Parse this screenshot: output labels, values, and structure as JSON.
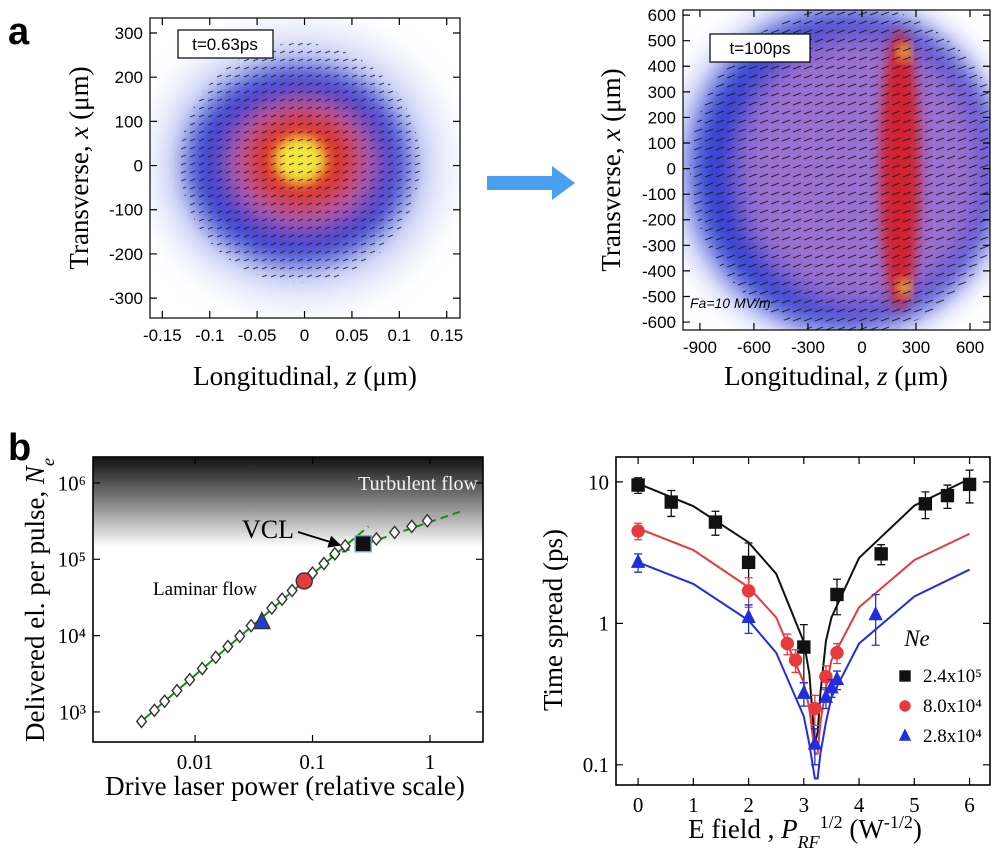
{
  "chart_data": [
    {
      "type": "heatmap",
      "panel_label": "a",
      "annotations": [
        "t=0.63ps"
      ],
      "xlabel": [
        "Longitudinal, ",
        "z",
        " (μm)"
      ],
      "ylabel": [
        "Transverse, ",
        "x",
        " (μm)"
      ],
      "xlim": [
        -0.163,
        0.164
      ],
      "xticks": [
        -0.15,
        -0.1,
        -0.05,
        0,
        0.05,
        0.1,
        0.15
      ],
      "ylim": [
        -345,
        334
      ],
      "yticks": [
        -300,
        -200,
        -100,
        0,
        100,
        200,
        300
      ]
    },
    {
      "type": "heatmap",
      "annotations": [
        "t=100ps",
        "Fa=10 MV/m"
      ],
      "xlabel": [
        "Longitudinal, ",
        "z",
        " (μm)"
      ],
      "ylabel": [
        "Transverse, ",
        "x",
        " (μm)"
      ],
      "xlim": [
        -994,
        711
      ],
      "xticks": [
        -900,
        -600,
        -300,
        0,
        300,
        600
      ],
      "ylim": [
        -631,
        620
      ],
      "yticks": [
        -600,
        -500,
        -400,
        -300,
        -200,
        -100,
        0,
        100,
        200,
        300,
        400,
        500,
        600
      ]
    },
    {
      "type": "scatter",
      "panel_label": "b",
      "xscale": "log",
      "yscale": "log",
      "annotations": [
        "Turbulent flow",
        "Laminar flow",
        "VCL"
      ],
      "xlabel": "Drive laser power (relative scale)",
      "ylabel": [
        "Delivered el. per pulse, ",
        "N",
        "e"
      ],
      "xlim": [
        0.00135,
        2.83
      ],
      "xticks": [
        0.01,
        0.1,
        1
      ],
      "ylim": [
        404,
        2190000
      ],
      "yticks": [
        {
          "value": 1000,
          "label": "10³"
        },
        {
          "value": 10000,
          "label": "10⁴"
        },
        {
          "value": 100000,
          "label": "10⁵"
        },
        {
          "value": 1000000,
          "label": "10⁶"
        }
      ],
      "series": [
        {
          "marker": "diamond",
          "color": "#ffffff",
          "x": [
            0.0035,
            0.0045,
            0.0055,
            0.007,
            0.009,
            0.0115,
            0.015,
            0.019,
            0.024,
            0.03,
            0.045,
            0.055,
            0.067,
            0.1,
            0.125,
            0.155,
            0.19,
            0.35,
            0.5,
            0.7,
            0.95
          ],
          "values": [
            750,
            1050,
            1380,
            1900,
            2650,
            3700,
            5200,
            7200,
            9800,
            13500,
            23000,
            30000,
            39000,
            66000,
            88000,
            118000,
            150000,
            185000,
            225000,
            270000,
            320000
          ]
        },
        {
          "marker": "triangle",
          "color": "#1f3fd0",
          "x": [
            0.037
          ],
          "values": [
            15000
          ]
        },
        {
          "marker": "circle",
          "color": "#e8393d",
          "x": [
            0.085
          ],
          "values": [
            52000
          ]
        },
        {
          "marker": "square",
          "color": "#111111",
          "x": [
            0.27
          ],
          "values": [
            160000
          ]
        }
      ],
      "lines": [
        {
          "color": "#1a8a1a",
          "dash": false,
          "x": [
            0.0033,
            0.2
          ],
          "values": [
            700,
            160000
          ]
        },
        {
          "color": "#1a8a1a",
          "dash": true,
          "x": [
            0.2,
            0.3
          ],
          "values": [
            160000,
            270000
          ]
        },
        {
          "color": "#1a8a1a",
          "dash": true,
          "x": [
            0.14,
            1.8
          ],
          "values": [
            110000,
            420000
          ]
        }
      ]
    },
    {
      "type": "scatter",
      "yscale": "log",
      "legend_title": "Ne",
      "xlabel": [
        "E field , ",
        "P",
        "RF",
        "1/2",
        " (W",
        "-1/2",
        ")"
      ],
      "ylabel": "Time spread (ps)",
      "xlim": [
        -0.4,
        6.37
      ],
      "xticks": [
        0,
        1,
        2,
        3,
        4,
        5,
        6
      ],
      "ylim": [
        0.072,
        15
      ],
      "yticks": [
        0.1,
        1,
        10
      ],
      "series": [
        {
          "name": "2.4x10⁵",
          "marker": "square",
          "color": "#111111",
          "x": [
            0,
            0.6,
            1.4,
            2.0,
            3.0,
            3.6,
            4.4,
            5.2,
            5.6,
            6.0
          ],
          "values": [
            9.5,
            7.2,
            5.2,
            2.7,
            0.68,
            1.6,
            3.1,
            7,
            8,
            9.6
          ],
          "errors": [
            1.2,
            1.5,
            1.0,
            1.0,
            0.3,
            0.45,
            0.5,
            1.5,
            1.5,
            2.5
          ],
          "fit": {
            "x": [
              0,
              1,
              2,
              2.5,
              3,
              3.1,
              3.2,
              3.25,
              3.3,
              3.4,
              3.5,
              4,
              5,
              6
            ],
            "y": [
              9.74,
              6.74,
              3.74,
              2.24,
              0.74,
              0.44,
              0.14,
              0.17,
              0.32,
              0.75,
              1.1,
              2.9,
              6.8,
              10.5
            ]
          }
        },
        {
          "name": "8.0x10⁴",
          "marker": "circle",
          "color": "#e8393d",
          "x": [
            0,
            2.0,
            2.7,
            2.85,
            3.2,
            3.4,
            3.6
          ],
          "values": [
            4.5,
            1.7,
            0.72,
            0.55,
            0.25,
            0.42,
            0.62
          ],
          "errors": [
            0.6,
            0.4,
            0.12,
            0.1,
            0.06,
            0.08,
            0.1
          ],
          "fit": {
            "x": [
              0,
              1,
              2,
              2.5,
              3,
              3.1,
              3.2,
              3.25,
              3.3,
              3.4,
              3.5,
              4,
              5,
              6
            ],
            "y": [
              4.7,
              3.3,
              1.8,
              1.1,
              0.38,
              0.25,
              0.12,
              0.12,
              0.2,
              0.35,
              0.55,
              1.3,
              2.8,
              4.3
            ]
          }
        },
        {
          "name": "2.8x10⁴",
          "marker": "triangle",
          "color": "#1f2fe0",
          "x": [
            0,
            2.0,
            3.0,
            3.2,
            3.4,
            3.5,
            3.6,
            4.3
          ],
          "values": [
            2.7,
            1.1,
            0.32,
            0.14,
            0.3,
            0.35,
            0.4,
            1.15
          ],
          "errors": [
            0.4,
            0.25,
            0.06,
            0.04,
            0.05,
            0.05,
            0.06,
            0.45
          ],
          "fit": {
            "x": [
              0,
              1,
              2,
              2.5,
              3,
              3.1,
              3.2,
              3.25,
              3.3,
              3.4,
              3.5,
              4,
              5,
              6
            ],
            "y": [
              2.7,
              1.9,
              1.05,
              0.62,
              0.22,
              0.14,
              0.08,
              0.08,
              0.12,
              0.2,
              0.3,
              0.72,
              1.55,
              2.4
            ]
          }
        }
      ]
    }
  ]
}
